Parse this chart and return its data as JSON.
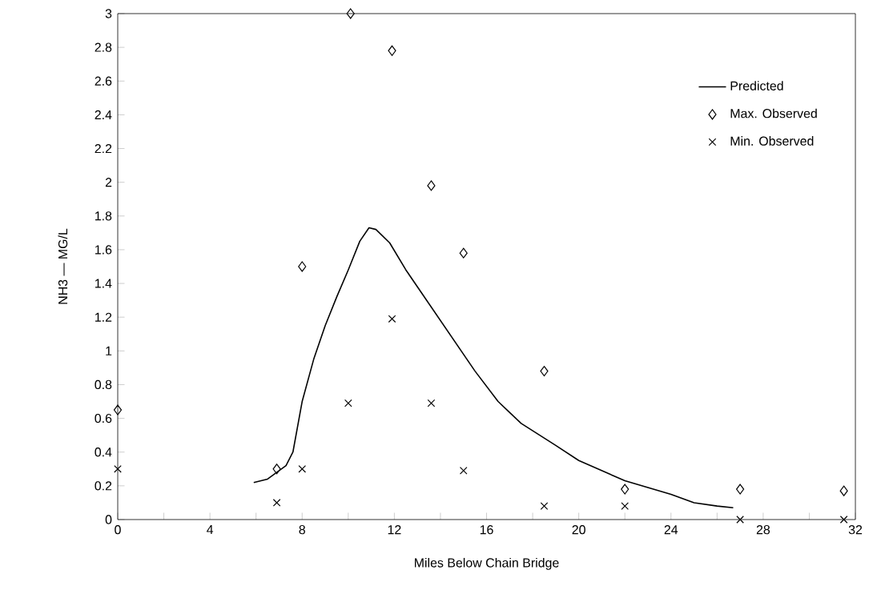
{
  "chart_data": {
    "type": "scatter",
    "xlabel": "Miles Below Chain Bridge",
    "ylabel": "NH3 — MG/L",
    "xlim": [
      0,
      32
    ],
    "ylim": [
      0,
      3
    ],
    "xticks": [
      0,
      {
        "value": 2,
        "label": null
      },
      4,
      {
        "value": 6,
        "label": null
      },
      8,
      {
        "value": 10,
        "label": null
      },
      12,
      {
        "value": 14,
        "label": null
      },
      16,
      {
        "value": 18,
        "label": null
      },
      20,
      {
        "value": 22,
        "label": null
      },
      24,
      {
        "value": 26,
        "label": null
      },
      28,
      {
        "value": 30,
        "label": null
      },
      32
    ],
    "yticks": [
      0,
      0.2,
      0.4,
      0.6,
      0.8,
      1,
      1.2,
      1.4,
      1.6,
      1.8,
      2,
      2.2,
      2.4,
      2.6,
      2.8,
      3
    ],
    "legend": "top right",
    "grid": false,
    "series": [
      {
        "name": "Predicted",
        "type": "line",
        "marker": "none",
        "line_style": "solid",
        "color": "#000000",
        "x": [
          5.9,
          6.5,
          7.3,
          7.6,
          8,
          8.5,
          9,
          9.5,
          10,
          10.5,
          10.9,
          11.2,
          11.8,
          12.5,
          13.5,
          14.5,
          15.5,
          16.5,
          17.5,
          19,
          20,
          21,
          22,
          23,
          24,
          25,
          26,
          26.7
        ],
        "values": [
          0.22,
          0.24,
          0.32,
          0.4,
          0.7,
          0.95,
          1.15,
          1.32,
          1.48,
          1.65,
          1.73,
          1.72,
          1.64,
          1.48,
          1.28,
          1.08,
          0.88,
          0.7,
          0.57,
          0.44,
          0.35,
          0.29,
          0.23,
          0.19,
          0.15,
          0.1,
          0.08,
          0.07
        ]
      },
      {
        "name": "Max. Observed",
        "marker": "diamond",
        "color": "#000000",
        "x": [
          0,
          6.9,
          8,
          10.1,
          11.9,
          13.6,
          15,
          18.5,
          22,
          27,
          31.5
        ],
        "values": [
          0.65,
          0.3,
          1.5,
          3.0,
          2.78,
          1.98,
          1.58,
          0.88,
          0.18,
          0.18,
          0.17
        ]
      },
      {
        "name": "Min. Observed",
        "marker": "cross",
        "color": "#000000",
        "x": [
          0,
          6.9,
          8,
          10,
          11.9,
          13.6,
          15,
          18.5,
          22,
          27,
          31.5
        ],
        "values": [
          0.3,
          0.1,
          0.3,
          0.69,
          1.19,
          0.69,
          0.29,
          0.08,
          0.08,
          0,
          0
        ]
      }
    ]
  }
}
